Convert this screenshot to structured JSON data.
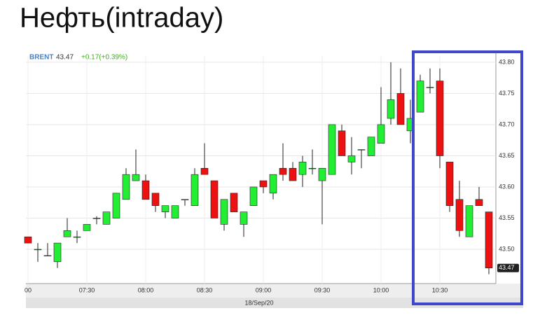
{
  "chart_data": {
    "type": "candlestick",
    "title": "Нефть(intraday)",
    "header": {
      "symbol": "BRENT",
      "last": 43.47,
      "change": "+0.17(+0.39%)"
    },
    "date_label": "18/Sep/20",
    "categories": [
      "00",
      null,
      null,
      null,
      null,
      null,
      "07:30",
      null,
      null,
      null,
      null,
      null,
      "08:00",
      null,
      null,
      null,
      null,
      null,
      "08:30",
      null,
      null,
      null,
      null,
      null,
      "09:00",
      null,
      null,
      null,
      null,
      null,
      "09:30",
      null,
      null,
      null,
      null,
      null,
      "10:00",
      null,
      null,
      null,
      null,
      null,
      "10:30",
      null,
      null,
      null,
      null,
      null
    ],
    "open": [
      43.52,
      43.5,
      43.49,
      43.48,
      43.52,
      43.52,
      43.53,
      43.55,
      43.54,
      43.55,
      43.58,
      43.61,
      43.61,
      43.59,
      43.56,
      43.55,
      43.58,
      43.57,
      43.63,
      43.61,
      43.54,
      43.59,
      43.54,
      43.57,
      43.61,
      43.59,
      43.63,
      43.63,
      43.62,
      43.63,
      43.61,
      43.62,
      43.69,
      43.64,
      43.66,
      43.65,
      43.67,
      43.71,
      43.75,
      43.69,
      43.72,
      43.76,
      43.77,
      43.64,
      43.58,
      43.52,
      43.58,
      43.56
    ],
    "high": [
      43.52,
      43.51,
      43.51,
      43.51,
      43.55,
      43.53,
      43.54,
      43.553,
      43.56,
      43.59,
      43.63,
      43.66,
      43.62,
      43.59,
      43.57,
      43.57,
      43.58,
      43.63,
      43.67,
      43.61,
      43.58,
      43.59,
      43.56,
      43.6,
      43.61,
      43.62,
      43.67,
      43.64,
      43.65,
      43.66,
      43.63,
      43.7,
      43.7,
      43.68,
      43.66,
      43.68,
      43.76,
      43.8,
      43.79,
      43.74,
      43.78,
      43.79,
      43.79,
      43.64,
      43.61,
      43.57,
      43.6,
      43.56
    ],
    "low": [
      43.51,
      43.48,
      43.49,
      43.47,
      43.52,
      43.51,
      43.53,
      43.54,
      43.54,
      43.55,
      43.58,
      43.61,
      43.58,
      43.56,
      43.55,
      43.55,
      43.57,
      43.57,
      43.62,
      43.55,
      43.53,
      43.56,
      43.52,
      43.57,
      43.59,
      43.58,
      43.61,
      43.61,
      43.6,
      43.62,
      43.54,
      43.62,
      43.65,
      43.62,
      43.63,
      43.65,
      43.67,
      43.7,
      43.7,
      43.67,
      43.72,
      43.75,
      43.63,
      43.56,
      43.52,
      43.52,
      43.57,
      43.46
    ],
    "close": [
      43.51,
      43.5,
      43.49,
      43.51,
      43.53,
      43.52,
      43.54,
      43.55,
      43.56,
      43.59,
      43.62,
      43.62,
      43.58,
      43.57,
      43.57,
      43.57,
      43.58,
      43.62,
      43.62,
      43.55,
      43.58,
      43.56,
      43.56,
      43.6,
      43.6,
      43.62,
      43.62,
      43.61,
      43.64,
      43.63,
      43.63,
      43.7,
      43.65,
      43.65,
      43.66,
      43.68,
      43.7,
      43.74,
      43.7,
      43.71,
      43.77,
      43.76,
      43.65,
      43.57,
      43.53,
      43.57,
      43.57,
      43.47
    ],
    "up_color": "#22ee33",
    "down_color": "#ee1111",
    "ylim": [
      43.445,
      43.81
    ],
    "yticks": [
      {
        "value": 43.5,
        "label": "43.50"
      },
      43.55,
      {
        "value": 43.6,
        "label": "43.60"
      },
      43.65,
      {
        "value": 43.7,
        "label": "43.70"
      },
      43.75,
      {
        "value": 43.8,
        "label": "43.80"
      }
    ],
    "grid": true
  }
}
